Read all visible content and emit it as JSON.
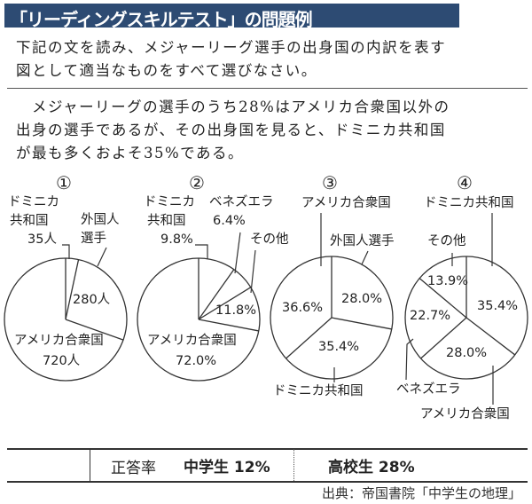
{
  "header": {
    "title": "「リーディングスキルテスト」の問題例",
    "bg_color": "#2d4b73"
  },
  "question": {
    "instruction_lines": [
      "下記の文を読み、メジャーリーグ選手の出身国の内訳を表す",
      "図として適当なものをすべて選びなさい。"
    ],
    "passage_lines": [
      "　メジャーリーグの選手のうち28%はアメリカ合衆国以外の",
      "出身の選手であるが、その出身国を見ると、ドミニカ共和国",
      "が最も多くおよそ35%である。"
    ]
  },
  "chart_data": [
    {
      "type": "pie",
      "title": "①",
      "slices": [
        {
          "label": "ドミニカ共和国",
          "label_lines": [
            "ドミニカ",
            "共和国"
          ],
          "value": 35,
          "value_text": "35人"
        },
        {
          "label": "外国人選手",
          "label_lines": [
            "外国人",
            "選手"
          ],
          "value": 280,
          "value_text": "280人"
        },
        {
          "label": "アメリカ合衆国",
          "label_lines": [
            "アメリカ合衆国"
          ],
          "value": 720,
          "value_text": "720人"
        }
      ]
    },
    {
      "type": "pie",
      "title": "②",
      "slices": [
        {
          "label": "ドミニカ共和国",
          "label_lines": [
            "ドミニカ",
            "共和国"
          ],
          "value": 9.8,
          "value_text": "9.8%"
        },
        {
          "label": "ベネズエラ",
          "label_lines": [
            "ベネズエラ"
          ],
          "value": 6.4,
          "value_text": "6.4%"
        },
        {
          "label": "その他",
          "label_lines": [
            "その他"
          ],
          "value": 11.8,
          "value_text": "11.8%"
        },
        {
          "label": "アメリカ合衆国",
          "label_lines": [
            "アメリカ合衆国"
          ],
          "value": 72.0,
          "value_text": "72.0%"
        }
      ]
    },
    {
      "type": "pie",
      "title": "③",
      "slices": [
        {
          "label": "外国人選手",
          "label_lines": [
            "外国人選手"
          ],
          "value": 28.0,
          "value_text": "28.0%"
        },
        {
          "label": "ドミニカ共和国",
          "label_lines": [
            "ドミニカ共和国"
          ],
          "value": 35.4,
          "value_text": "35.4%"
        },
        {
          "label": "アメリカ合衆国",
          "label_lines": [
            "アメリカ合衆国"
          ],
          "value": 36.6,
          "value_text": "36.6%"
        }
      ]
    },
    {
      "type": "pie",
      "title": "④",
      "slices": [
        {
          "label": "ドミニカ共和国",
          "label_lines": [
            "ドミニカ共和国"
          ],
          "value": 35.4,
          "value_text": "35.4%"
        },
        {
          "label": "アメリカ合衆国",
          "label_lines": [
            "アメリカ合衆国"
          ],
          "value": 28.0,
          "value_text": "28.0%"
        },
        {
          "label": "ベネズエラ",
          "label_lines": [
            "ベネズエラ"
          ],
          "value": 22.7,
          "value_text": "22.7%"
        },
        {
          "label": "その他",
          "label_lines": [
            "その他"
          ],
          "value": 13.9,
          "value_text": "13.9%"
        }
      ]
    }
  ],
  "results": {
    "label": "正答率",
    "junior_high": "中学生 12%",
    "high_school": "高校生 28%"
  },
  "source": "出典：帝国書院「中学生の地理」"
}
